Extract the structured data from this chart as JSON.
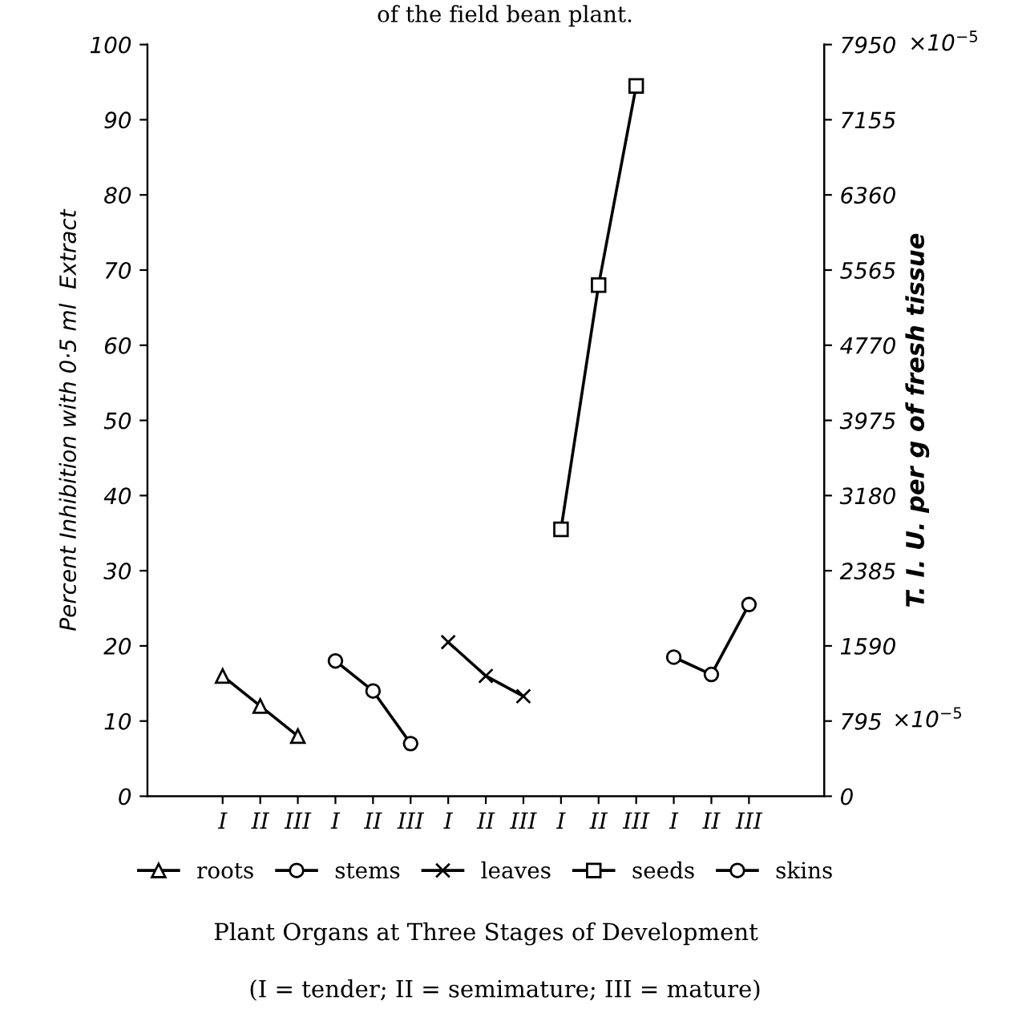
{
  "chart_data": {
    "type": "line",
    "title": "of the field bean plant.",
    "ylabel": "Percent Inhibition with 0·5 ml  Extract",
    "y2label": "T. I. U. per g of fresh tissue",
    "xlabel": "Plant Organs at Three Stages of Development",
    "annotations": [
      "(I = tender; II = semimature; III = mature)",
      "×10$^{−5}$",
      "×10$^{−5}$"
    ],
    "categories": [
      "I",
      "II",
      "III",
      "I",
      "II",
      "III",
      "I",
      "II",
      "III",
      "I",
      "II",
      "III",
      "I",
      "II",
      "III"
    ],
    "ylim": [
      0,
      100
    ],
    "yticks": [
      0,
      10,
      20,
      30,
      40,
      50,
      60,
      70,
      80,
      90,
      100
    ],
    "y2lim": [
      0,
      7950
    ],
    "y2ticks": [
      0,
      795,
      1590,
      2385,
      3180,
      3975,
      4770,
      5565,
      6360,
      7155,
      7950
    ],
    "grid": false,
    "legend": "bottom",
    "line_style": "solid",
    "series": [
      {
        "name": "roots",
        "color": "#000000",
        "marker": "triangle",
        "values": [
          16,
          12,
          8,
          null,
          null,
          null,
          null,
          null,
          null,
          null,
          null,
          null,
          null,
          null,
          null
        ]
      },
      {
        "name": "stems",
        "color": "#000000",
        "marker": "circle",
        "values": [
          null,
          null,
          null,
          18,
          14,
          7,
          null,
          null,
          null,
          null,
          null,
          null,
          null,
          null,
          null
        ]
      },
      {
        "name": "leaves",
        "color": "#000000",
        "marker": "cross",
        "values": [
          null,
          null,
          null,
          null,
          null,
          null,
          20.5,
          16,
          13.3,
          null,
          null,
          null,
          null,
          null,
          null
        ]
      },
      {
        "name": "seeds",
        "color": "#000000",
        "marker": "square",
        "values": [
          null,
          null,
          null,
          null,
          null,
          null,
          null,
          null,
          null,
          35.5,
          68,
          94.5,
          null,
          null,
          null
        ]
      },
      {
        "name": "skins",
        "color": "#000000",
        "marker": "circle",
        "values": [
          null,
          null,
          null,
          null,
          null,
          null,
          null,
          null,
          null,
          null,
          null,
          null,
          18.5,
          16.2,
          25.5
        ]
      }
    ]
  }
}
